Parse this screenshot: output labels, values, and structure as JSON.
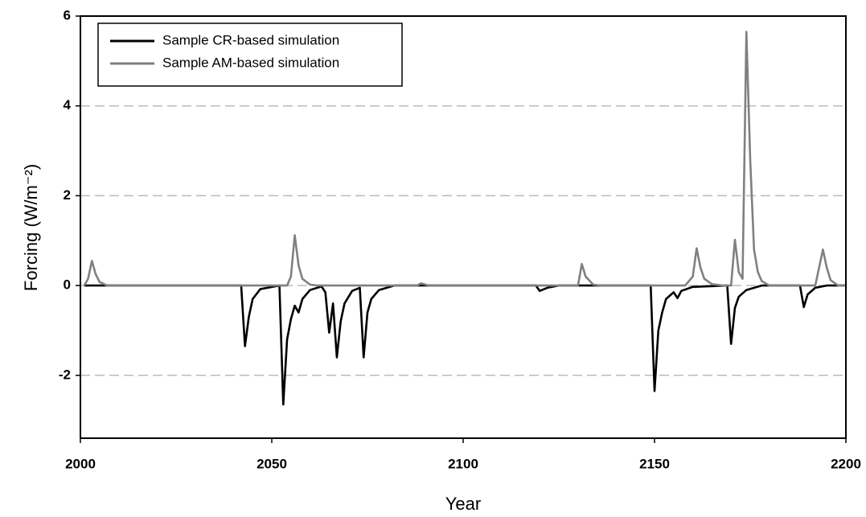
{
  "chart_data": {
    "type": "line",
    "x_label": "Year",
    "y_label": "Forcing (W/m⁻²)",
    "xlim": [
      2000,
      2200
    ],
    "xticks": [
      2000,
      2050,
      2100,
      2150,
      2200
    ],
    "ylim": [
      -3.4,
      6
    ],
    "yticks": [
      -2,
      0,
      2,
      4,
      6
    ],
    "grid": true,
    "legend": "upper left",
    "series": [
      {
        "name": "Sample CR-based simulation",
        "color": "#000000",
        "x": [
          2001,
          2042,
          2043,
          2044,
          2045,
          2047,
          2052,
          2053,
          2054,
          2055,
          2056,
          2057,
          2058,
          2060,
          2063,
          2064,
          2065,
          2066,
          2067,
          2068,
          2069,
          2071,
          2073,
          2074,
          2075,
          2076,
          2078,
          2082,
          2119,
          2120,
          2122,
          2125,
          2149,
          2150,
          2151,
          2152,
          2153,
          2155,
          2156,
          2157,
          2160,
          2169,
          2170,
          2171,
          2172,
          2174,
          2178,
          2188,
          2189,
          2190,
          2192,
          2195,
          2200
        ],
        "values": [
          0,
          0,
          -1.35,
          -0.7,
          -0.3,
          -0.08,
          0,
          -2.65,
          -1.2,
          -0.75,
          -0.45,
          -0.6,
          -0.3,
          -0.1,
          -0.02,
          -0.15,
          -1.05,
          -0.4,
          -1.6,
          -0.8,
          -0.4,
          -0.12,
          -0.05,
          -1.6,
          -0.6,
          -0.3,
          -0.1,
          0,
          0,
          -0.12,
          -0.05,
          0,
          0,
          -2.35,
          -1.0,
          -0.6,
          -0.3,
          -0.15,
          -0.28,
          -0.12,
          -0.03,
          0,
          -1.3,
          -0.5,
          -0.25,
          -0.1,
          0,
          0,
          -0.48,
          -0.2,
          -0.05,
          0,
          0
        ]
      },
      {
        "name": "Sample AM-based simulation",
        "color": "#808080",
        "x": [
          2001,
          2002,
          2003,
          2004,
          2005,
          2007,
          2054,
          2055,
          2056,
          2057,
          2058,
          2060,
          2062,
          2088,
          2089,
          2091,
          2130,
          2131,
          2132,
          2134,
          2136,
          2158,
          2160,
          2161,
          2162,
          2163,
          2165,
          2168,
          2170,
          2171,
          2172,
          2173,
          2174,
          2175,
          2176,
          2177,
          2178,
          2180,
          2192,
          2193,
          2194,
          2195,
          2196,
          2198,
          2200
        ],
        "values": [
          0,
          0.15,
          0.55,
          0.25,
          0.08,
          0,
          0,
          0.2,
          1.12,
          0.45,
          0.15,
          0.02,
          0,
          0,
          0.05,
          0,
          0,
          0.48,
          0.2,
          0.02,
          0,
          0,
          0.2,
          0.83,
          0.4,
          0.15,
          0.03,
          0,
          0,
          1.02,
          0.3,
          0.15,
          5.65,
          2.8,
          0.8,
          0.3,
          0.1,
          0,
          0,
          0.4,
          0.8,
          0.4,
          0.12,
          0,
          0
        ]
      }
    ]
  }
}
